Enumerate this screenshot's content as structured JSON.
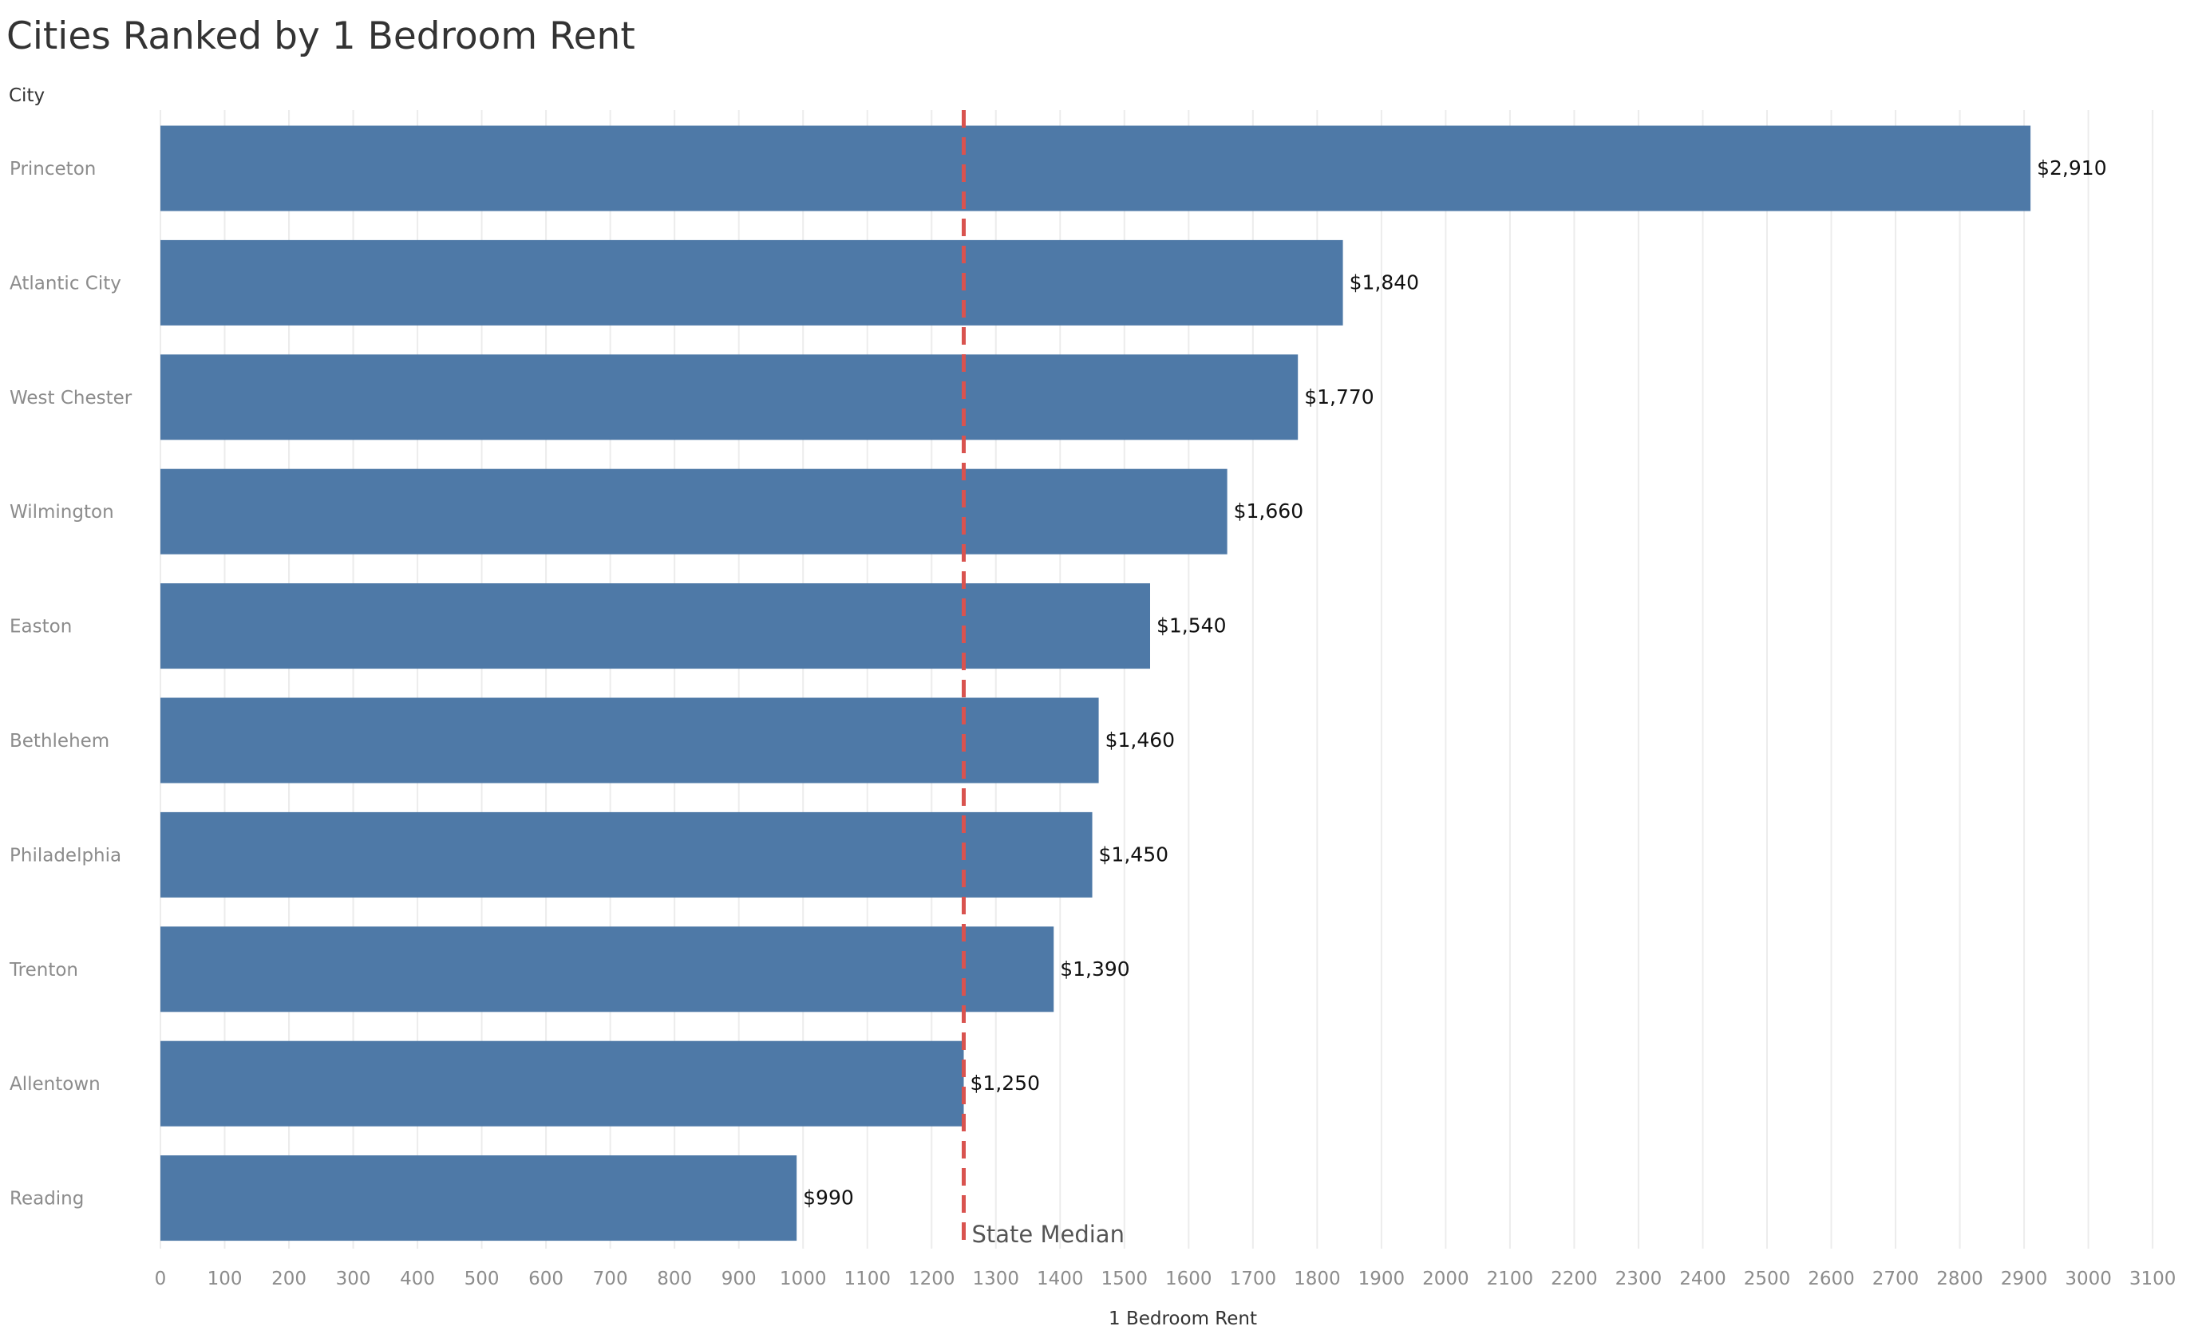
{
  "chart_data": {
    "type": "bar",
    "orientation": "horizontal",
    "title": "Cities Ranked by 1 Bedroom Rent",
    "row_header": "City",
    "xlabel": "1 Bedroom Rent",
    "ylabel": "",
    "categories": [
      "Princeton",
      "Atlantic City",
      "West Chester",
      "Wilmington",
      "Easton",
      "Bethlehem",
      "Philadelphia",
      "Trenton",
      "Allentown",
      "Reading"
    ],
    "values": [
      2910,
      1840,
      1770,
      1660,
      1540,
      1460,
      1450,
      1390,
      1250,
      990
    ],
    "value_labels": [
      "$2,910",
      "$1,840",
      "$1,770",
      "$1,660",
      "$1,540",
      "$1,460",
      "$1,450",
      "$1,390",
      "$1,250",
      "$990"
    ],
    "xlim": [
      0,
      3180
    ],
    "x_ticks": [
      0,
      100,
      200,
      300,
      400,
      500,
      600,
      700,
      800,
      900,
      1000,
      1100,
      1200,
      1300,
      1400,
      1500,
      1600,
      1700,
      1800,
      1900,
      2000,
      2100,
      2200,
      2300,
      2400,
      2500,
      2600,
      2700,
      2800,
      2900,
      3000,
      3100
    ],
    "grid": true,
    "reference_line": {
      "label": "State Median",
      "value": 1250,
      "color": "#d9534f",
      "style": "dashed"
    },
    "bar_color": "#4e79a7",
    "grid_color": "#ececec"
  }
}
